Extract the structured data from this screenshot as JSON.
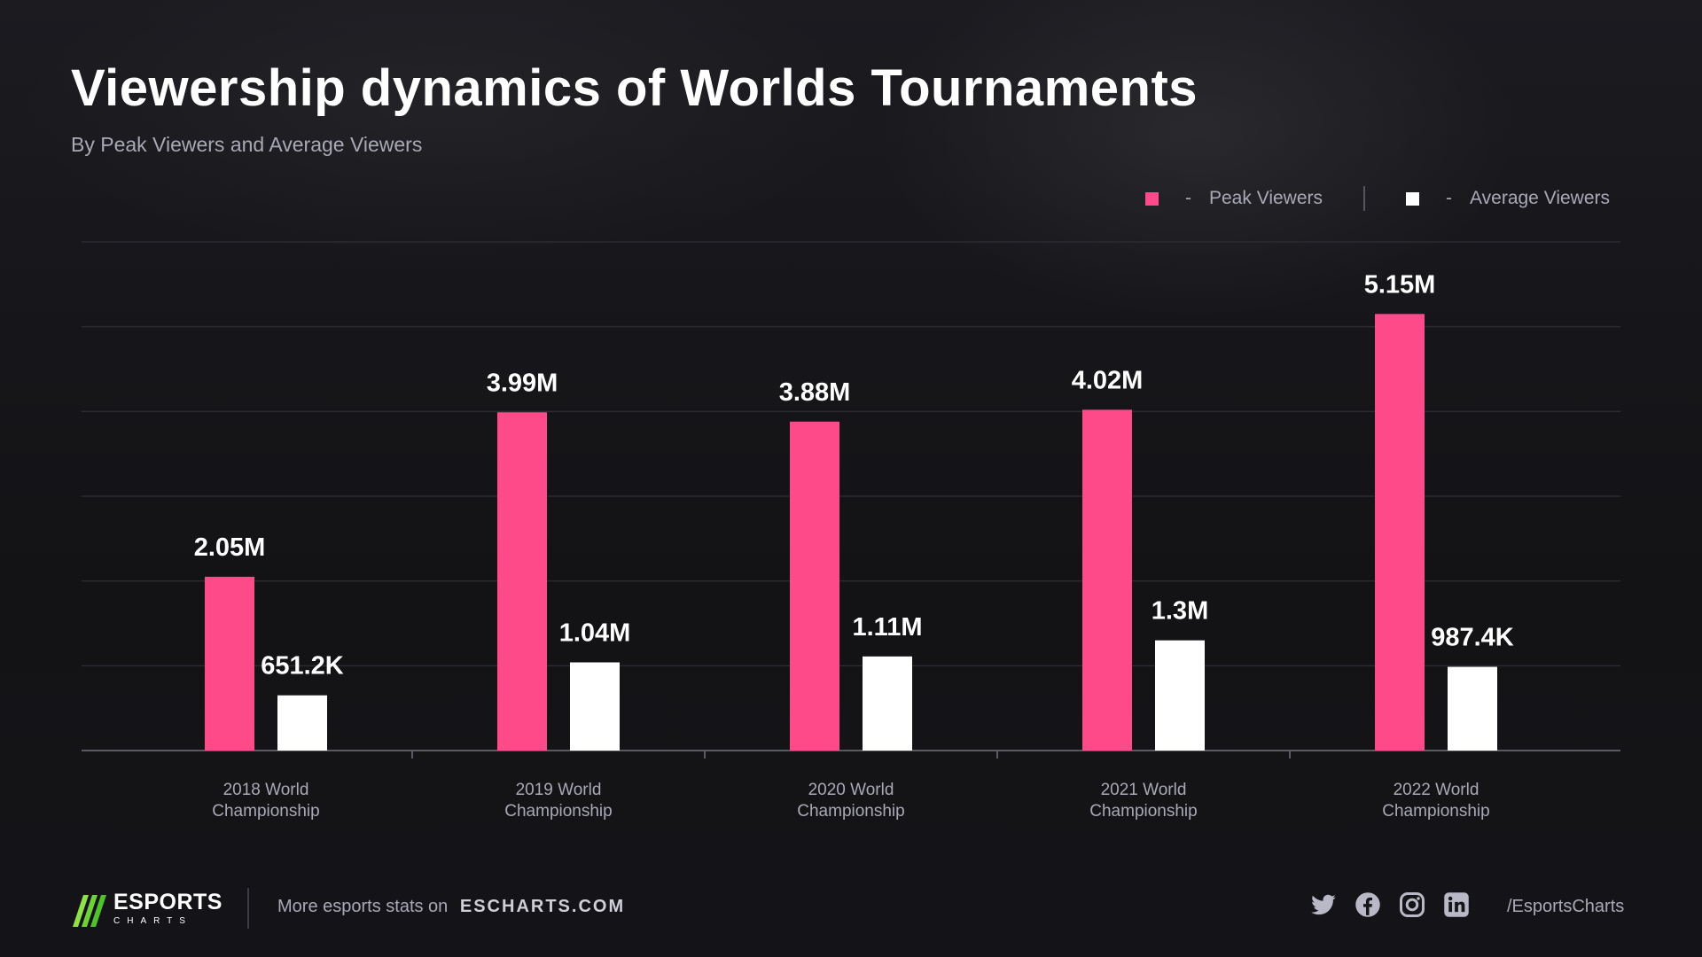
{
  "header": {
    "title": "Viewership dynamics of Worlds Tournaments",
    "subtitle": "By Peak Viewers and Average Viewers"
  },
  "legend": {
    "peak_label": "Peak Viewers",
    "average_label": "Average Viewers",
    "dash": "-"
  },
  "colors": {
    "peak": "#ff4a8a",
    "average": "#ffffff",
    "background": "#16161a",
    "gridline": "#2a2a30",
    "axis": "#5a5a64",
    "text_muted": "#a9a9b6"
  },
  "chart_data": {
    "type": "bar",
    "categories": [
      [
        "2018 World",
        "Championship"
      ],
      [
        "2019 World",
        "Championship"
      ],
      [
        "2020 World",
        "Championship"
      ],
      [
        "2021 World",
        "Championship"
      ],
      [
        "2022 World",
        "Championship"
      ]
    ],
    "series": [
      {
        "name": "Peak Viewers",
        "values": [
          2050000,
          3990000,
          3880000,
          4020000,
          5150000
        ],
        "labels": [
          "2.05M",
          "3.99M",
          "3.88M",
          "4.02M",
          "5.15M"
        ]
      },
      {
        "name": "Average Viewers",
        "values": [
          651200,
          1040000,
          1110000,
          1300000,
          987400
        ],
        "labels": [
          "651.2K",
          "1.04M",
          "1.11M",
          "1.3M",
          "987.4K"
        ]
      }
    ],
    "ylim": [
      0,
      6000000
    ],
    "grid": true,
    "legend_position": "top-right"
  },
  "footer": {
    "logo_main": "ESPORTS",
    "logo_sub": "CHARTS",
    "more_text": "More esports stats on",
    "site": "ESCHARTS.COM",
    "social_icons": [
      "twitter-icon",
      "facebook-icon",
      "instagram-icon",
      "linkedin-icon"
    ],
    "handle": "/EsportsCharts"
  }
}
